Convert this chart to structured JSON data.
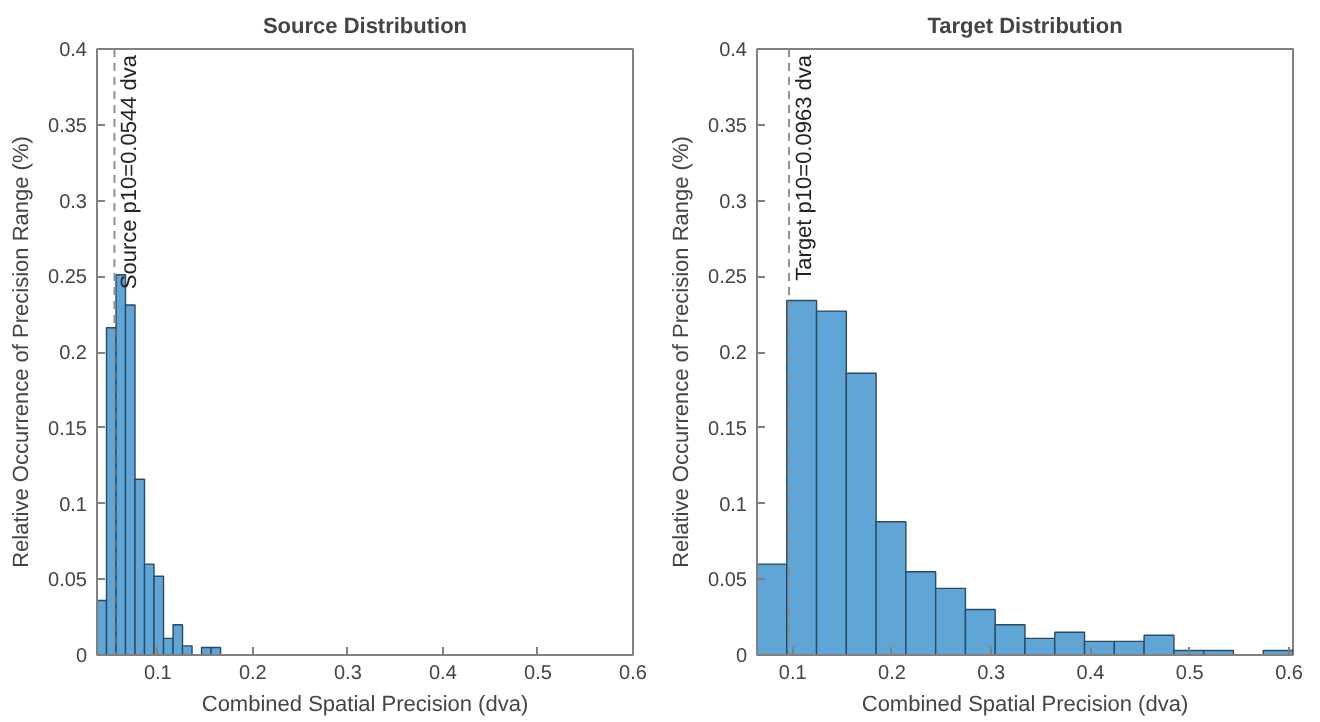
{
  "chart_data": [
    {
      "type": "histogram",
      "title": "Source Distribution",
      "xlabel": "Combined Spatial Precision (dva)",
      "ylabel": "Relative Occurrence of Precision Range (%)",
      "bins": [
        0.036,
        0.046,
        0.056,
        0.066,
        0.076,
        0.086,
        0.096,
        0.106,
        0.116,
        0.126,
        0.136,
        0.146,
        0.156,
        0.166
      ],
      "values": [
        0.036,
        0.216,
        0.251,
        0.231,
        0.116,
        0.06,
        0.052,
        0.011,
        0.02,
        0.006,
        0,
        0.005,
        0.005
      ],
      "color": "#5fa5d6",
      "xlim": [
        0.036,
        0.6
      ],
      "ylim": [
        0,
        0.4
      ],
      "xticks": [
        0.1,
        0.2,
        0.3,
        0.4,
        0.5,
        0.6
      ],
      "yticks": [
        0,
        0.05,
        0.1,
        0.15,
        0.2,
        0.25,
        0.3,
        0.35,
        0.4
      ],
      "grid": false,
      "ref_lines": [
        {
          "axis": "x",
          "value": 0.0544,
          "label": "Source p10=0.0544 dva",
          "color": "#909090",
          "line_style": "dashed"
        }
      ]
    },
    {
      "type": "histogram",
      "title": "Target Distribution",
      "xlabel": "Combined Spatial Precision (dva)",
      "ylabel": "Relative Occurrence of Precision Range (%)",
      "bins": [
        0.064,
        0.094,
        0.124,
        0.154,
        0.184,
        0.214,
        0.244,
        0.274,
        0.304,
        0.334,
        0.364,
        0.394,
        0.424,
        0.454,
        0.484,
        0.514,
        0.544,
        0.574,
        0.604
      ],
      "values": [
        0.06,
        0.234,
        0.227,
        0.186,
        0.088,
        0.055,
        0.044,
        0.03,
        0.02,
        0.011,
        0.015,
        0.009,
        0.009,
        0.013,
        0.003,
        0.003,
        0,
        0.003
      ],
      "color": "#5fa5d6",
      "xlim": [
        0.064,
        0.604
      ],
      "ylim": [
        0,
        0.4
      ],
      "xticks": [
        0.1,
        0.2,
        0.3,
        0.4,
        0.5,
        0.6
      ],
      "yticks": [
        0,
        0.05,
        0.1,
        0.15,
        0.2,
        0.25,
        0.3,
        0.35,
        0.4
      ],
      "grid": false,
      "ref_lines": [
        {
          "axis": "x",
          "value": 0.0963,
          "label": "Target p10=0.0963 dva",
          "color": "#909090",
          "line_style": "dashed"
        }
      ]
    }
  ]
}
